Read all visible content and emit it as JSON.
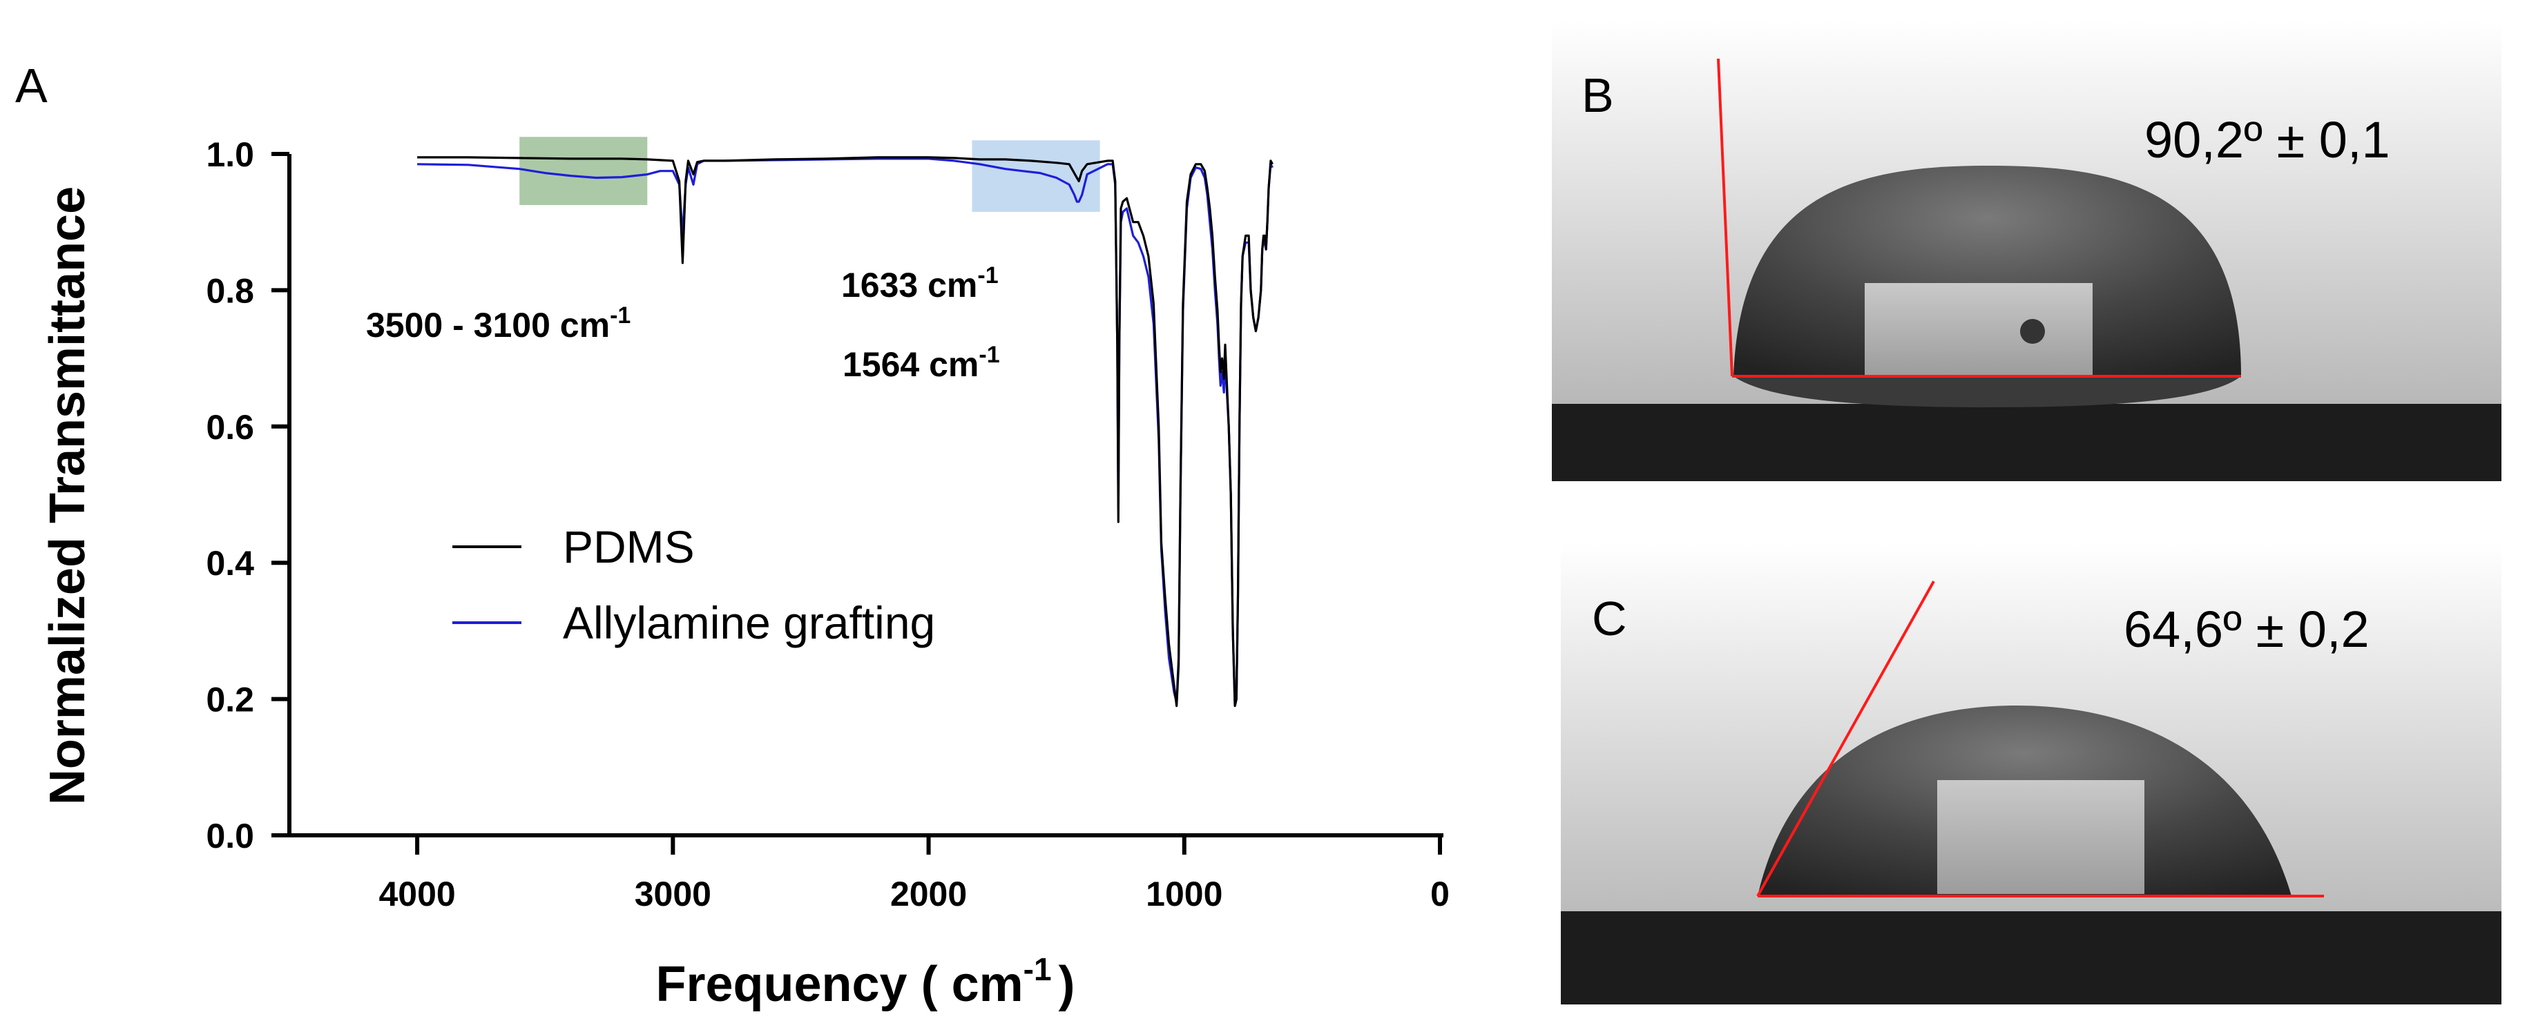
{
  "panels": {
    "a_label": "A",
    "b_label": "B",
    "c_label": "C"
  },
  "chart_data": {
    "type": "line",
    "title": "",
    "xlabel": "Frequency ( cm",
    "xlabel_sup": "-1",
    "xlabel_tail": ")",
    "ylabel": "Normalized Transmittance",
    "xlim": [
      4500,
      0
    ],
    "ylim": [
      0.0,
      1.0
    ],
    "x_ticks": [
      4000,
      3000,
      2000,
      1000,
      0
    ],
    "y_ticks": [
      "0.0",
      "0.2",
      "0.4",
      "0.6",
      "0.8",
      "1.0"
    ],
    "grid": false,
    "legend_position": "center-left",
    "colors": {
      "pdms": "#000000",
      "allylamine": "#1f1fd8",
      "green_band": "#9dbf98",
      "blue_band": "#b8d3ee",
      "fit_line": "#ff1a1a"
    },
    "highlight_bands": [
      {
        "x_range": [
          3600,
          3100
        ],
        "y_range": [
          0.925,
          1.025
        ],
        "color": "#9dbf98"
      },
      {
        "x_range": [
          1830,
          1330
        ],
        "y_range": [
          0.915,
          1.02
        ],
        "color": "#b8d3ee"
      }
    ],
    "annotations": [
      {
        "text": "3500 - 3100 cm",
        "sup": "-1"
      },
      {
        "text": "1633 cm",
        "sup": "-1"
      },
      {
        "text": "1564 cm",
        "sup": "-1"
      }
    ],
    "series": [
      {
        "name": "PDMS",
        "x": [
          4000,
          3800,
          3600,
          3400,
          3200,
          3100,
          3000,
          2975,
          2962,
          2950,
          2940,
          2920,
          2905,
          2880,
          2800,
          2600,
          2400,
          2200,
          2000,
          1900,
          1800,
          1700,
          1600,
          1500,
          1450,
          1420,
          1412,
          1400,
          1380,
          1300,
          1280,
          1270,
          1262,
          1258,
          1254,
          1248,
          1240,
          1225,
          1200,
          1180,
          1160,
          1140,
          1120,
          1100,
          1090,
          1075,
          1060,
          1040,
          1030,
          1022,
          1015,
          1005,
          990,
          975,
          955,
          935,
          920,
          910,
          900,
          890,
          880,
          870,
          864,
          858,
          852,
          845,
          840,
          832,
          826,
          818,
          810,
          802,
          796,
          790,
          784,
          778,
          772,
          760,
          748,
          740,
          730,
          720,
          710,
          700,
          695,
          690,
          685,
          680,
          675,
          670,
          662,
          655
        ],
        "values": [
          0.995,
          0.995,
          0.994,
          0.993,
          0.993,
          0.992,
          0.99,
          0.96,
          0.84,
          0.96,
          0.99,
          0.97,
          0.988,
          0.99,
          0.99,
          0.992,
          0.993,
          0.995,
          0.995,
          0.994,
          0.992,
          0.992,
          0.99,
          0.987,
          0.985,
          0.965,
          0.96,
          0.975,
          0.985,
          0.99,
          0.99,
          0.96,
          0.72,
          0.46,
          0.72,
          0.92,
          0.93,
          0.935,
          0.9,
          0.9,
          0.88,
          0.85,
          0.78,
          0.6,
          0.43,
          0.35,
          0.28,
          0.22,
          0.19,
          0.25,
          0.5,
          0.78,
          0.93,
          0.97,
          0.985,
          0.985,
          0.975,
          0.95,
          0.92,
          0.88,
          0.82,
          0.77,
          0.72,
          0.68,
          0.7,
          0.67,
          0.72,
          0.65,
          0.6,
          0.5,
          0.3,
          0.19,
          0.2,
          0.35,
          0.6,
          0.78,
          0.85,
          0.88,
          0.88,
          0.8,
          0.76,
          0.74,
          0.76,
          0.8,
          0.86,
          0.88,
          0.88,
          0.86,
          0.9,
          0.95,
          0.99,
          0.985
        ]
      },
      {
        "name": "Allylamine grafting",
        "x": [
          4000,
          3800,
          3600,
          3500,
          3400,
          3300,
          3200,
          3100,
          3050,
          3000,
          2975,
          2962,
          2950,
          2940,
          2920,
          2905,
          2880,
          2800,
          2600,
          2400,
          2200,
          2000,
          1900,
          1800,
          1700,
          1633,
          1564,
          1500,
          1450,
          1430,
          1420,
          1412,
          1400,
          1380,
          1300,
          1280,
          1270,
          1262,
          1258,
          1254,
          1248,
          1240,
          1225,
          1200,
          1180,
          1160,
          1140,
          1120,
          1100,
          1090,
          1075,
          1060,
          1040,
          1030,
          1022,
          1015,
          1005,
          990,
          975,
          955,
          935,
          920,
          910,
          900,
          890,
          880,
          870,
          864,
          858,
          852,
          845,
          840,
          832,
          826,
          818,
          810,
          802,
          796,
          790,
          784,
          778,
          772,
          760,
          748,
          740,
          730,
          720,
          710,
          700,
          695,
          690,
          685,
          680,
          675,
          670,
          662,
          655
        ],
        "values": [
          0.985,
          0.984,
          0.978,
          0.972,
          0.968,
          0.965,
          0.966,
          0.97,
          0.975,
          0.975,
          0.955,
          0.88,
          0.955,
          0.98,
          0.955,
          0.985,
          0.99,
          0.99,
          0.991,
          0.992,
          0.993,
          0.993,
          0.99,
          0.985,
          0.978,
          0.975,
          0.972,
          0.965,
          0.955,
          0.94,
          0.93,
          0.93,
          0.94,
          0.97,
          0.985,
          0.985,
          0.955,
          0.72,
          0.48,
          0.72,
          0.9,
          0.915,
          0.92,
          0.88,
          0.87,
          0.85,
          0.82,
          0.75,
          0.58,
          0.42,
          0.33,
          0.26,
          0.21,
          0.195,
          0.26,
          0.5,
          0.77,
          0.92,
          0.965,
          0.98,
          0.978,
          0.965,
          0.94,
          0.9,
          0.86,
          0.8,
          0.75,
          0.7,
          0.66,
          0.68,
          0.65,
          0.7,
          0.64,
          0.6,
          0.5,
          0.3,
          0.19,
          0.2,
          0.35,
          0.6,
          0.78,
          0.85,
          0.87,
          0.87,
          0.8,
          0.76,
          0.74,
          0.76,
          0.8,
          0.86,
          0.87,
          0.87,
          0.86,
          0.9,
          0.95,
          0.985,
          0.98
        ]
      }
    ]
  },
  "contact_angles": {
    "b_value": "90,2º ± 0,1",
    "c_value": "64,6º ± 0,2"
  }
}
